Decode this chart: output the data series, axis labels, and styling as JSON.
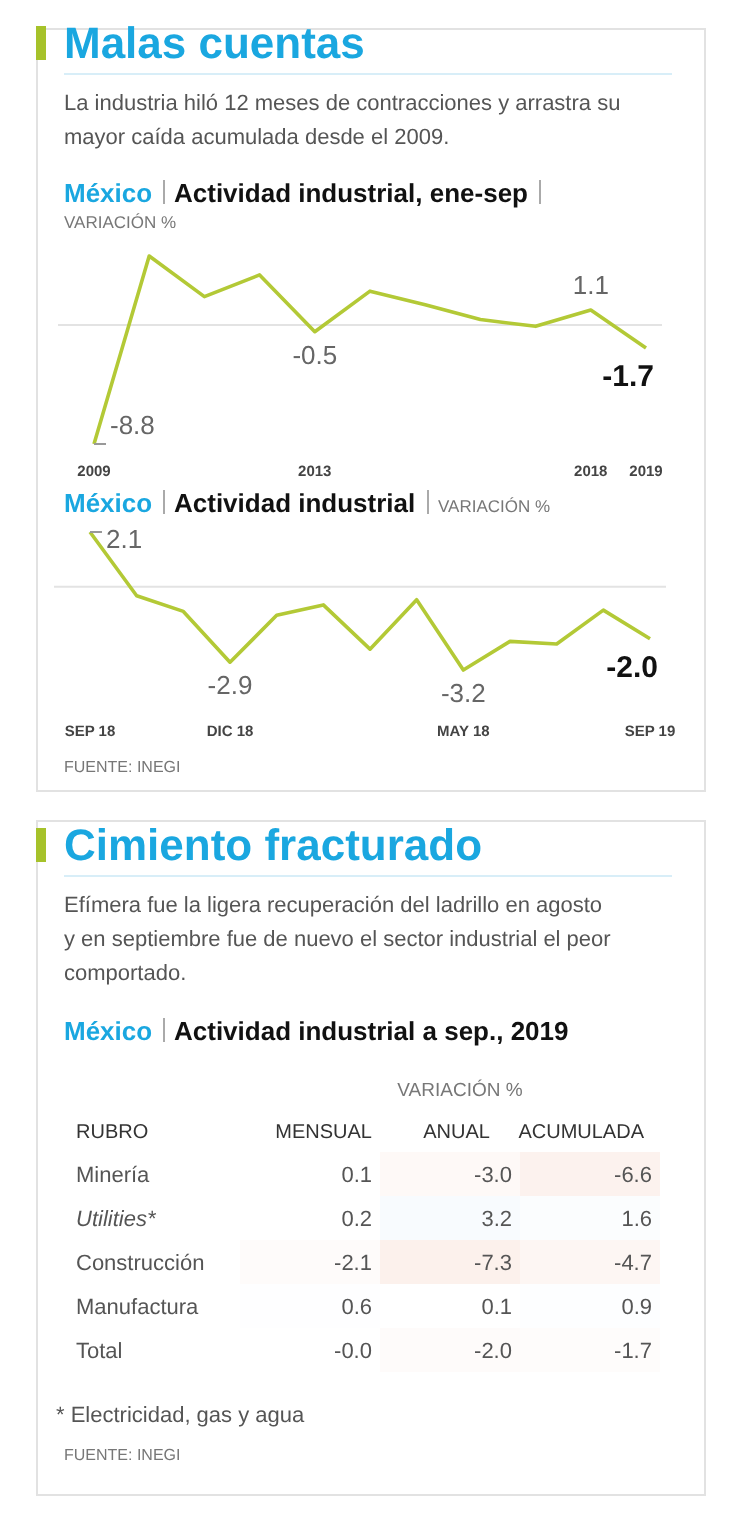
{
  "chart_data": [
    {
      "type": "line",
      "title": "Malas cuentas",
      "subtitle": "La industria hiló 12 meses de contracciones y arrastra su mayor caída acumulada desde el 2009.",
      "ylabel": "VARIACIÓN %",
      "annotations": [
        "México",
        "Actividad industrial, ene-sep"
      ],
      "categories": [
        "2009",
        null,
        null,
        null,
        "2013",
        null,
        null,
        null,
        null,
        "2018",
        "2019"
      ],
      "series": [
        {
          "color": "#b3c936",
          "values": [
            -8.8,
            5.1,
            2.1,
            3.7,
            -0.5,
            2.5,
            1.5,
            0.4,
            -0.1,
            1.1,
            -1.7
          ],
          "value_labels": [
            "-8.8",
            null,
            null,
            null,
            "-0.5",
            null,
            null,
            null,
            null,
            "1.1",
            "-1.7"
          ]
        }
      ],
      "ref_lines": [
        {
          "axis": "y",
          "value": 0,
          "color": "#e3e3e3"
        }
      ]
    },
    {
      "type": "line",
      "title": "Actividad industrial",
      "ylabel": "VARIACIÓN %",
      "annotations": [
        "México",
        "FUENTE: INEGI"
      ],
      "categories": [
        "SEP 18",
        null,
        null,
        "DIC 18",
        null,
        null,
        null,
        null,
        "MAY 18",
        null,
        null,
        null,
        "SEP 19"
      ],
      "series": [
        {
          "color": "#b3c936",
          "values": [
            2.1,
            -0.35,
            -0.95,
            -2.9,
            -1.1,
            -0.7,
            -2.4,
            -0.5,
            -3.2,
            -2.1,
            -2.2,
            -0.9,
            -2.0
          ],
          "value_labels": [
            "2.1",
            null,
            null,
            "-2.9",
            null,
            null,
            null,
            null,
            "-3.2",
            null,
            null,
            null,
            "-2.0"
          ]
        }
      ],
      "ref_lines": [
        {
          "axis": "y",
          "value": 0,
          "color": "#e3e3e3"
        }
      ]
    },
    {
      "type": "heatmap",
      "title": "Cimiento fracturado",
      "subtitle": "Efímera fue la ligera recuperación del ladrillo en agosto y en septiembre fue de nuevo el sector industrial el peor comportado.",
      "xlabel": "VARIACIÓN %",
      "ylabel": "RUBRO",
      "annotations": [
        "México",
        "Actividad industrial a sep., 2019",
        "* Electricidad, gas y agua",
        "FUENTE: INEGI"
      ],
      "categories": [
        "MENSUAL",
        "ANUAL",
        "ACUMULADA"
      ],
      "y_categories": [
        "Minería",
        "Utilities*",
        "Construcción",
        "Manufactura",
        "Total"
      ],
      "cells": [
        [
          0.1,
          -3.0,
          -6.6
        ],
        [
          0.2,
          3.2,
          1.6
        ],
        [
          -2.1,
          -7.3,
          -4.7
        ],
        [
          0.6,
          0.1,
          0.9
        ],
        [
          -0.0,
          -2.0,
          -1.7
        ]
      ],
      "cell_labels": [
        [
          "0.1",
          "-3.0",
          "-6.6"
        ],
        [
          "0.2",
          "3.2",
          "1.6"
        ],
        [
          "-2.1",
          "-7.3",
          "-4.7"
        ],
        [
          "0.6",
          "0.1",
          "0.9"
        ],
        [
          "-0.0",
          "-2.0",
          "-1.7"
        ]
      ]
    }
  ]
}
